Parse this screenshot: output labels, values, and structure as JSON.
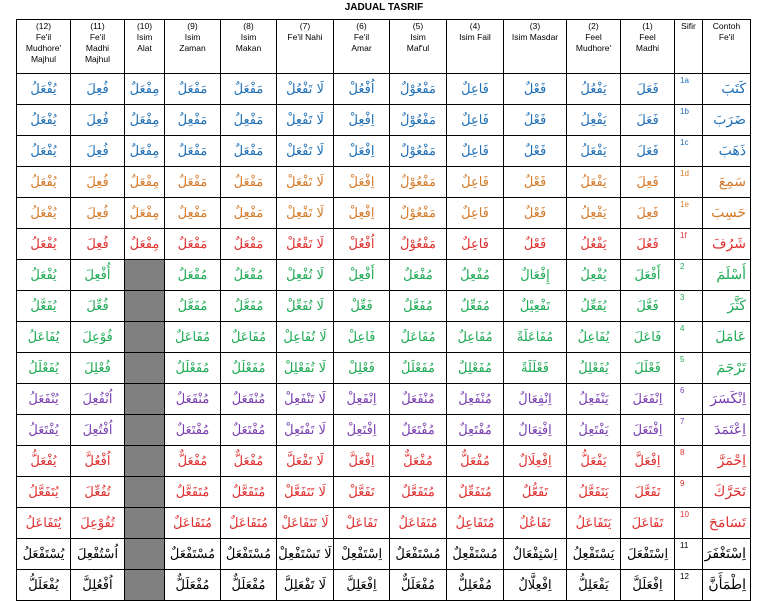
{
  "title": "JADUAL TASRIF",
  "headers": [
    {
      "lines": [
        "(12)",
        "Fe'il",
        "Mudhore'",
        "Majhul"
      ]
    },
    {
      "lines": [
        "(11)",
        "Fe'il",
        "Madhi",
        "Majhul"
      ]
    },
    {
      "lines": [
        "(10)",
        "Isim",
        "Alat"
      ]
    },
    {
      "lines": [
        "(9)",
        "Isim",
        "Zaman"
      ]
    },
    {
      "lines": [
        "(8)",
        "Isim",
        "Makan"
      ]
    },
    {
      "lines": [
        "(7)",
        "Fe'il Nahi"
      ]
    },
    {
      "lines": [
        "(6)",
        "Fe'il",
        "Amar"
      ]
    },
    {
      "lines": [
        "(5)",
        "Isim",
        "Maf'ul"
      ]
    },
    {
      "lines": [
        "(4)",
        "Isim Fail"
      ]
    },
    {
      "lines": [
        "(3)",
        "Isim Masdar"
      ]
    },
    {
      "lines": [
        "(2)",
        "Feel",
        "Mudhore'"
      ]
    },
    {
      "lines": [
        "(1)",
        "Feel",
        "Madhi"
      ]
    },
    {
      "lines": [
        "Sifir"
      ]
    },
    {
      "lines": [
        "Contoh",
        "Fe'il"
      ]
    }
  ],
  "colors": {
    "blue": "#1f6fb5",
    "orange": "#d47a2a",
    "red": "#e03030",
    "green": "#1faa55",
    "purple": "#7a3fb0",
    "darkred": "#b01e24",
    "black": "#000000",
    "shade": "#808080"
  },
  "rows": [
    {
      "sifir": "1a",
      "color": "blue",
      "shaded": false,
      "cells": [
        "يُفْعَلُ",
        "فُعِلَ",
        "مِفْعَلٌ",
        "مَفْعَلٌ",
        "مَفْعَلٌ",
        "لَا تَفْعُلْ",
        "اُفْعُلْ",
        "مَفْعُوْلٌ",
        "فَاعِلٌ",
        "فَعْلٌ",
        "يَفْعُلُ",
        "فَعَلَ"
      ],
      "contoh": "كَتَبَ"
    },
    {
      "sifir": "1b",
      "color": "blue",
      "shaded": false,
      "cells": [
        "يُفْعَلُ",
        "فُعِلَ",
        "مِفْعَلٌ",
        "مَفْعِلٌ",
        "مَفْعِلٌ",
        "لَا تَفْعِلْ",
        "اِفْعِلْ",
        "مَفْعُوْلٌ",
        "فَاعِلٌ",
        "فَعْلٌ",
        "يَفْعِلُ",
        "فَعَلَ"
      ],
      "contoh": "ضَرَبَ"
    },
    {
      "sifir": "1c",
      "color": "blue",
      "shaded": false,
      "cells": [
        "يُفْعَلُ",
        "فُعِلَ",
        "مِفْعَلٌ",
        "مَفْعَلٌ",
        "مَفْعَلٌ",
        "لَا تَفْعَلْ",
        "اِفْعَلْ",
        "مَفْعُوْلٌ",
        "فَاعِلٌ",
        "فَعْلٌ",
        "يَفْعَلُ",
        "فَعَلَ"
      ],
      "contoh": "ذَهَبَ"
    },
    {
      "sifir": "1d",
      "color": "orange",
      "shaded": false,
      "cells": [
        "يُفْعَلُ",
        "فُعِلَ",
        "مِفْعَلٌ",
        "مَفْعَلٌ",
        "مَفْعَلٌ",
        "لَا تَفْعَلْ",
        "اِفْعَلْ",
        "مَفْعُوْلٌ",
        "فَاعِلٌ",
        "فَعْلٌ",
        "يَفْعَلُ",
        "فَعِلَ"
      ],
      "contoh": "سَمِعَ"
    },
    {
      "sifir": "1e",
      "color": "orange",
      "shaded": false,
      "cells": [
        "يُفْعَلُ",
        "فُعِلَ",
        "مِفْعَلٌ",
        "مَفْعِلٌ",
        "مَفْعِلٌ",
        "لَا تَفْعِلْ",
        "اِفْعِلْ",
        "مَفْعُوْلٌ",
        "فَاعِلٌ",
        "فَعْلٌ",
        "يَفْعِلُ",
        "فَعِلَ"
      ],
      "contoh": "حَسِبَ"
    },
    {
      "sifir": "1f",
      "color": "red",
      "shaded": false,
      "cells": [
        "يُفْعَلُ",
        "فُعِلَ",
        "مِفْعَلٌ",
        "مَفْعَلٌ",
        "مَفْعَلٌ",
        "لَا تَفْعُلْ",
        "اُفْعُلْ",
        "مَفْعُوْلٌ",
        "فَاعِلٌ",
        "فَعْلٌ",
        "يَفْعُلُ",
        "فَعُلَ"
      ],
      "contoh": "شَرُفَ"
    },
    {
      "sifir": "2",
      "color": "green",
      "shaded": true,
      "cells": [
        "يُفْعَلُ",
        "أُفْعِلَ",
        "",
        "مُفْعَلٌ",
        "مُفْعَلٌ",
        "لَا تُفْعِلْ",
        "أَفْعِلْ",
        "مُفْعَلٌ",
        "مُفْعِلٌ",
        "إِفْعَالٌ",
        "يُفْعِلُ",
        "أَفْعَلَ"
      ],
      "contoh": "أَسْلَمَ"
    },
    {
      "sifir": "3",
      "color": "green",
      "shaded": true,
      "cells": [
        "يُفَعَّلُ",
        "فُعِّلَ",
        "",
        "مُفَعَّلٌ",
        "مُفَعَّلٌ",
        "لَا تُفَعِّلْ",
        "فَعِّلْ",
        "مُفَعَّلٌ",
        "مُفَعِّلٌ",
        "تَفْعِيْلٌ",
        "يُفَعِّلُ",
        "فَعَّلَ"
      ],
      "contoh": "كَثَّرَ"
    },
    {
      "sifir": "4",
      "color": "green",
      "shaded": true,
      "cells": [
        "يُفَاعَلُ",
        "فُوْعِلَ",
        "",
        "مُفَاعَلٌ",
        "مُفَاعَلٌ",
        "لَا تُفَاعِلْ",
        "فَاعِلْ",
        "مُفَاعَلٌ",
        "مُفَاعِلٌ",
        "مُفَاعَلَةً",
        "يُفَاعِلُ",
        "فَاعَلَ"
      ],
      "contoh": "عَامَلَ"
    },
    {
      "sifir": "5",
      "color": "green",
      "shaded": true,
      "cells": [
        "يُفَعْلَلُ",
        "فُعْلِلَ",
        "",
        "مُفَعْلَلٌ",
        "مُفَعْلَلٌ",
        "لَا تُفَعْلِلْ",
        "فَعْلِلْ",
        "مُفَعْلَلٌ",
        "مُفَعْلِلٌ",
        "فَعْلَلَةً",
        "يُفَعْلِلُ",
        "فَعْلَلَ"
      ],
      "contoh": "تَرْجَمَ"
    },
    {
      "sifir": "6",
      "color": "purple",
      "shaded": true,
      "cells": [
        "يُنْفَعَلُ",
        "اُنْفُعِلَ",
        "",
        "مُنْفَعَلٌ",
        "مُنْفَعَلٌ",
        "لَا تَنْفَعِلْ",
        "اِنْفَعِلْ",
        "مُنْفَعَلٌ",
        "مُنْفَعِلٌ",
        "اِنْفِعَالٌ",
        "يَنْفَعِلُ",
        "اِنْفَعَلَ"
      ],
      "contoh": "اِنْكَسَرَ"
    },
    {
      "sifir": "7",
      "color": "purple",
      "shaded": true,
      "cells": [
        "يُفْتَعَلُ",
        "اُفْتُعِلَ",
        "",
        "مُفْتَعَلٌ",
        "مُفْتَعَلٌ",
        "لَا تَفْتَعِلْ",
        "اِفْتَعِلْ",
        "مُفْتَعَلٌ",
        "مُفْتَعِلٌ",
        "اِفْتِعَالٌ",
        "يَفْتَعِلُ",
        "اِفْتَعَلَ"
      ],
      "contoh": "اِعْتَمَدَ"
    },
    {
      "sifir": "8",
      "color": "red",
      "shaded": true,
      "cells": [
        "يُفْعَلُّ",
        "اُفْعُلَّ",
        "",
        "مُفْعَلٌّ",
        "مُفْعَلٌّ",
        "لَا تَفْعَلَّ",
        "اِفْعَلَّ",
        "مُفْعَلٌّ",
        "مُفْعَلٌّ",
        "اِفْعِلَالٌ",
        "يَفْعَلُّ",
        "اِفْعَلَّ"
      ],
      "contoh": "اِحْمَرَّ"
    },
    {
      "sifir": "9",
      "color": "red",
      "shaded": true,
      "cells": [
        "يُتَفَعَّلُ",
        "تُفُعِّلَ",
        "",
        "مُتَفَعَّلٌ",
        "مُتَفَعَّلٌ",
        "لَا تَتَفَعَّلْ",
        "تَفَعَّلْ",
        "مُتَفَعَّلٌ",
        "مُتَفَعِّلٌ",
        "تَفَعُّلٌ",
        "يَتَفَعَّلُ",
        "تَفَعَّلَ"
      ],
      "contoh": "تَحَرَّكَ"
    },
    {
      "sifir": "10",
      "color": "red",
      "shaded": true,
      "cells": [
        "يُتَفَاعَلُ",
        "تُفُوْعِلَ",
        "",
        "مُتَفَاعَلٌ",
        "مُتَفَاعَلٌ",
        "لَا تَتَفَاعَلْ",
        "تَفَاعَلْ",
        "مُتَفَاعَلٌ",
        "مُتَفَاعِلٌ",
        "تَفَاعُلٌ",
        "يَتَفَاعَلُ",
        "تَفَاعَلَ"
      ],
      "contoh": "تَسَامَحَ"
    },
    {
      "sifir": "11",
      "color": "black",
      "shaded": true,
      "cells": [
        "يُسْتَفْعَلُ",
        "اُسْتُفْعِلَ",
        "",
        "مُسْتَفْعَلٌ",
        "مُسْتَفْعَلٌ",
        "لَا تَسْتَفْعِلْ",
        "اِسْتَفْعِلْ",
        "مُسْتَفْعَلٌ",
        "مُسْتَفْعِلٌ",
        "اِسْتِفْعَالٌ",
        "يَسْتَفْعِلُ",
        "اِسْتَفْعَلَ"
      ],
      "contoh": "اِسْتَغْفَرَ"
    },
    {
      "sifir": "12",
      "color": "black",
      "shaded": true,
      "cells": [
        "يُفْعَلَلُّ",
        "اُفْعُلِلَّ",
        "",
        "مُفْعَلَلٌّ",
        "مُفْعَلَلٌّ",
        "لَا تَفْعَلِلَّ",
        "اِفْعَلِلَّ",
        "مُفْعَلَلٌّ",
        "مُفْعَلِلٌّ",
        "اِفْعِلَّالٌ",
        "يَفْعَلِلُّ",
        "اِفْعَلَلَّ"
      ],
      "contoh": "اِطْمَأَنَّ"
    }
  ]
}
